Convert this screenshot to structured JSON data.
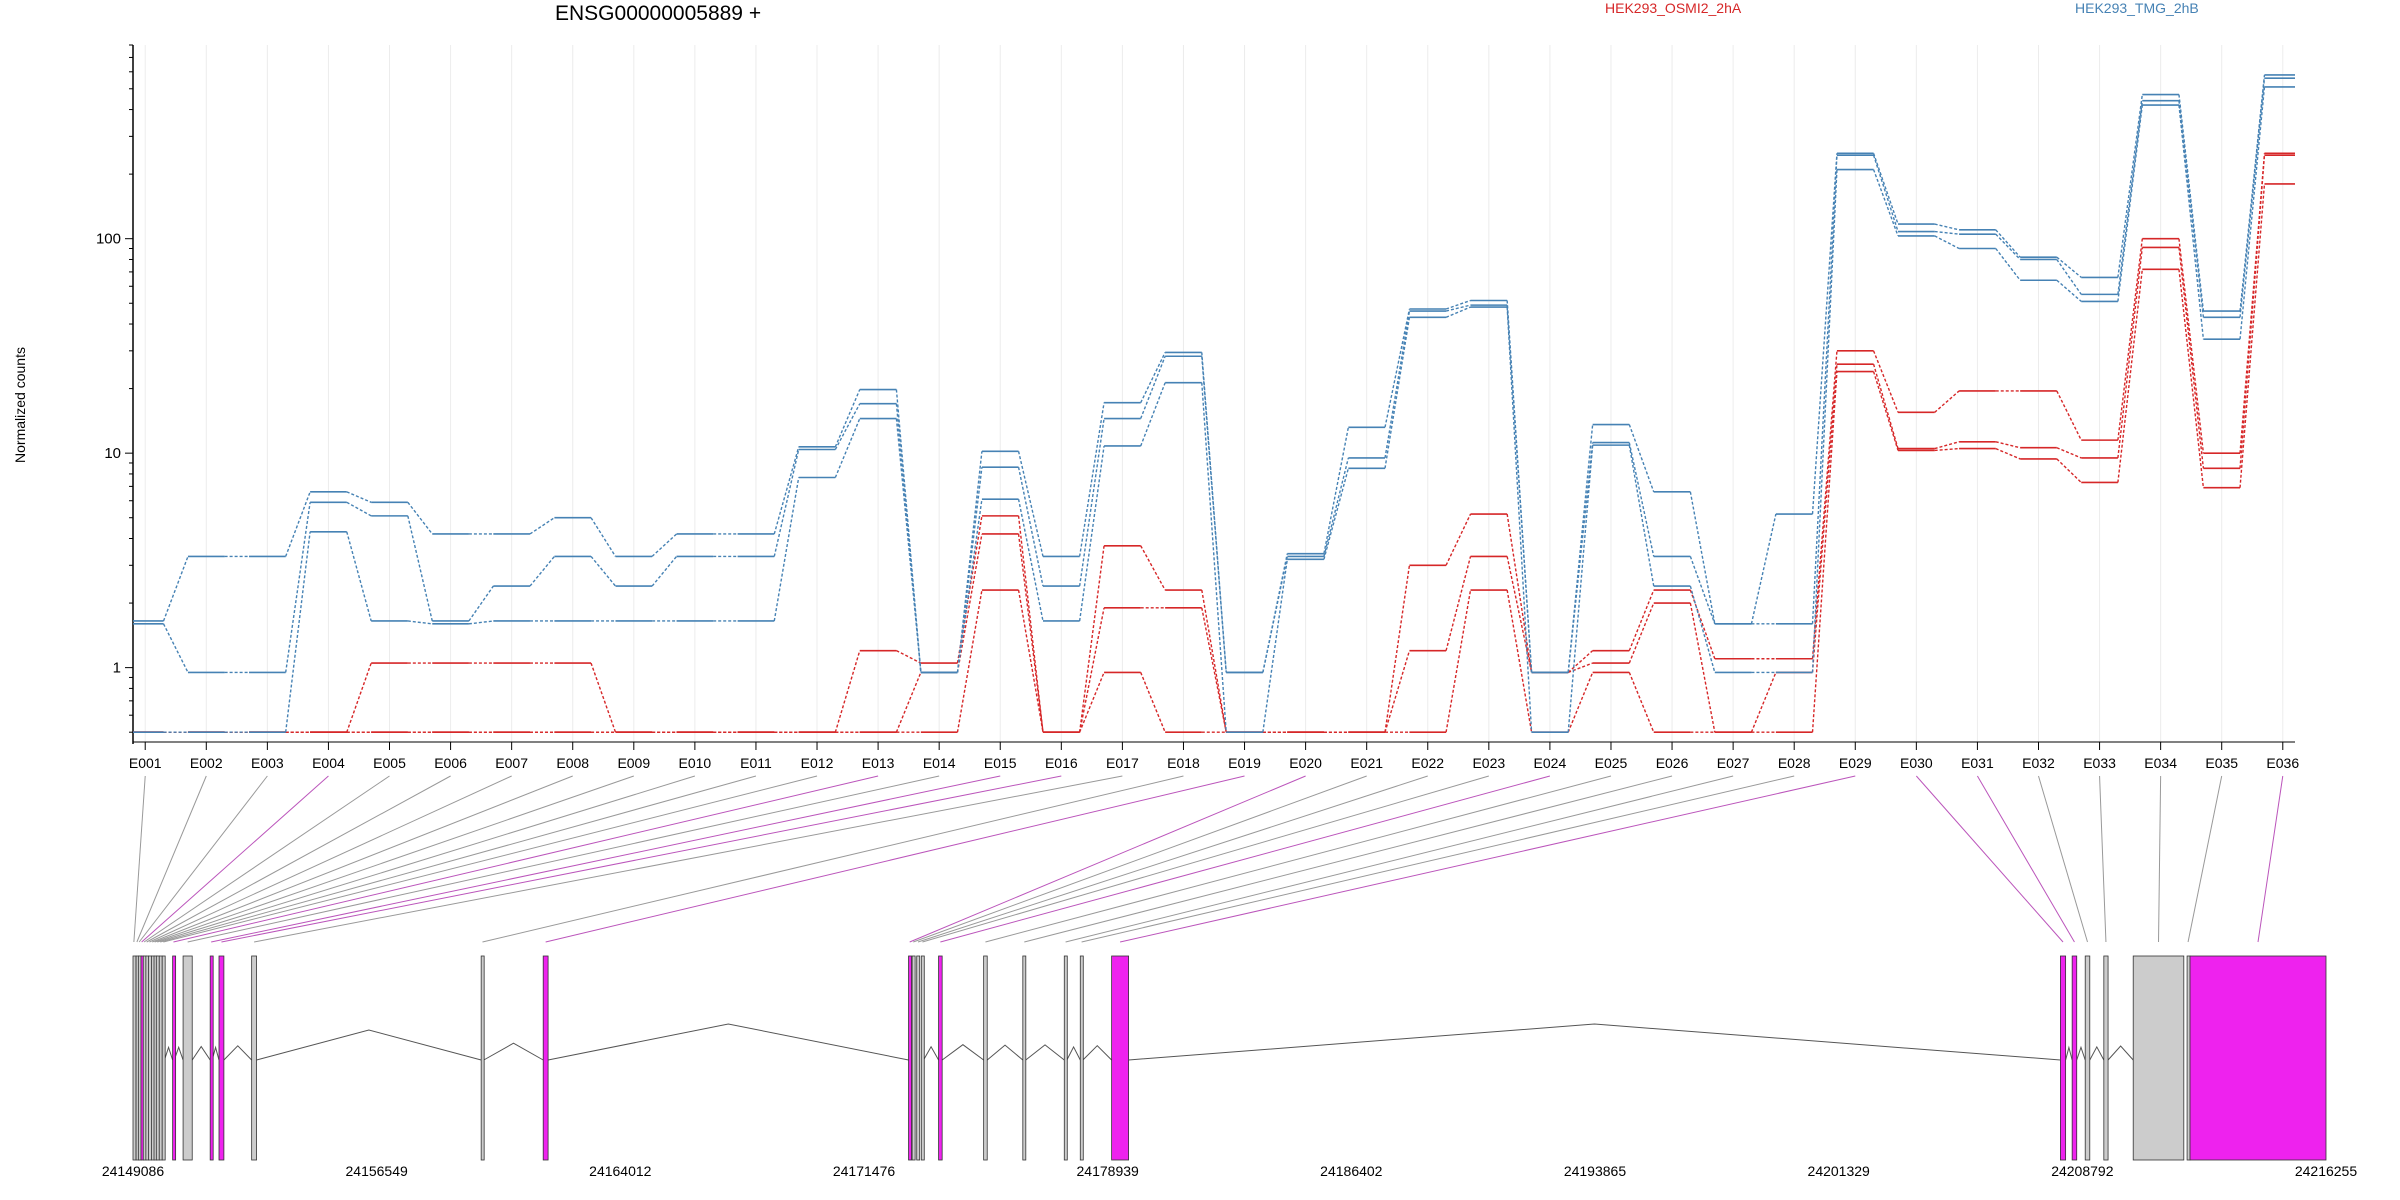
{
  "chart_data": {
    "type": "line",
    "title": "ENSG00000005889 +",
    "ylabel": "Normalized counts",
    "yscale": "log",
    "ylim": [
      0.45,
      800
    ],
    "yticks": [
      "1",
      "10",
      "100"
    ],
    "yticks_values": [
      1,
      10,
      100
    ],
    "grid": "vertical-only",
    "legend_placement": "top",
    "categories": [
      "E001",
      "E002",
      "E003",
      "E004",
      "E005",
      "E006",
      "E007",
      "E008",
      "E009",
      "E010",
      "E011",
      "E012",
      "E013",
      "E014",
      "E015",
      "E016",
      "E017",
      "E018",
      "E019",
      "E020",
      "E021",
      "E022",
      "E023",
      "E024",
      "E025",
      "E026",
      "E027",
      "E028",
      "E029",
      "E030",
      "E031",
      "E032",
      "E033",
      "E034",
      "E035",
      "E036"
    ],
    "series": [
      {
        "name": "HEK293_OSMI2_2hA",
        "group": "HEK293_OSMI2_2hA",
        "color": "#d62728",
        "values": [
          0.5,
          0.5,
          0.5,
          0.5,
          1.05,
          1.05,
          1.05,
          1.05,
          0.5,
          0.5,
          0.5,
          0.5,
          1.2,
          1.05,
          5.1,
          0.5,
          3.7,
          2.3,
          0.5,
          0.5,
          0.5,
          3.0,
          5.2,
          0.95,
          1.2,
          2.3,
          1.1,
          1.1,
          30,
          15.5,
          19.5,
          19.5,
          11.5,
          100,
          10,
          250
        ]
      },
      {
        "name": "",
        "group": "HEK293_OSMI2_2hA",
        "color": "#d62728",
        "values": [
          0.5,
          0.5,
          0.5,
          0.5,
          0.5,
          0.5,
          0.5,
          0.5,
          0.5,
          0.5,
          0.5,
          0.5,
          0.5,
          0.95,
          4.2,
          0.5,
          1.9,
          1.9,
          0.5,
          0.5,
          0.5,
          1.2,
          3.3,
          0.95,
          1.05,
          2.0,
          0.5,
          0.95,
          26,
          10.5,
          11.3,
          10.6,
          9.5,
          91,
          8.5,
          245
        ]
      },
      {
        "name": "",
        "group": "HEK293_OSMI2_2hA",
        "color": "#d62728",
        "values": [
          0.5,
          0.5,
          0.5,
          0.5,
          0.5,
          0.5,
          0.5,
          0.5,
          0.5,
          0.5,
          0.5,
          0.5,
          0.5,
          0.5,
          2.3,
          0.5,
          0.95,
          0.5,
          0.5,
          0.5,
          0.5,
          0.5,
          2.3,
          0.5,
          0.95,
          0.5,
          0.5,
          0.5,
          24,
          10.3,
          10.5,
          9.4,
          7.3,
          72,
          6.9,
          180
        ]
      },
      {
        "name": "HEK293_TMG_2hB",
        "group": "HEK293_TMG_2hB",
        "color": "#4682b4",
        "values": [
          1.65,
          3.3,
          3.3,
          6.6,
          5.9,
          4.2,
          4.2,
          5.0,
          3.3,
          4.2,
          4.2,
          10.7,
          19.8,
          0.95,
          10.2,
          3.3,
          17.2,
          29.5,
          0.95,
          3.4,
          13.2,
          47,
          51.5,
          0.95,
          13.6,
          6.6,
          1.6,
          5.2,
          250,
          117,
          110,
          82,
          66,
          470,
          46,
          580
        ]
      },
      {
        "name": "",
        "group": "HEK293_TMG_2hB",
        "color": "#4682b4",
        "values": [
          1.6,
          0.95,
          0.95,
          5.9,
          5.1,
          1.65,
          2.4,
          3.3,
          2.4,
          3.3,
          3.3,
          10.4,
          17,
          0.95,
          8.6,
          2.4,
          14.5,
          28.3,
          0.95,
          3.3,
          9.5,
          46,
          49,
          0.95,
          11.2,
          3.3,
          1.6,
          1.6,
          245,
          108,
          105,
          80,
          55,
          440,
          43,
          560
        ]
      },
      {
        "name": "",
        "group": "HEK293_TMG_2hB",
        "color": "#4682b4",
        "values": [
          0.5,
          0.5,
          0.5,
          4.3,
          1.65,
          1.6,
          1.65,
          1.65,
          1.65,
          1.65,
          1.65,
          7.7,
          14.5,
          0.95,
          6.1,
          1.65,
          10.8,
          21.3,
          0.5,
          3.2,
          8.5,
          43,
          48,
          0.5,
          10.9,
          2.4,
          0.95,
          0.95,
          210,
          103,
          90,
          64,
          51,
          420,
          34,
          510
        ]
      }
    ],
    "gene_axis_ticks": [
      "24149086",
      "24156549",
      "24164012",
      "24171476",
      "24178939",
      "24186402",
      "24193865",
      "24201329",
      "24208792",
      "24216255"
    ],
    "gene_axis_values": [
      24149086,
      24156549,
      24164012,
      24171476,
      24178939,
      24186402,
      24193865,
      24201329,
      24208792,
      24216255
    ],
    "exon_genomic_spans": [
      [
        24149086,
        24149140
      ],
      [
        24149180,
        24149230
      ],
      [
        24149250,
        24149300
      ],
      [
        24149330,
        24149372
      ],
      [
        24149400,
        24149450
      ],
      [
        24149480,
        24149530
      ],
      [
        24149560,
        24149620
      ],
      [
        24149650,
        24149700
      ],
      [
        24149730,
        24149770
      ],
      [
        24149800,
        24149860
      ],
      [
        24149890,
        24149950
      ],
      [
        24149980,
        24150050
      ],
      [
        24150300,
        24150350
      ],
      [
        24150620,
        24150900
      ],
      [
        24151450,
        24151510
      ],
      [
        24151720,
        24151870
      ],
      [
        24152720,
        24152870
      ],
      [
        24159750,
        24159830
      ],
      [
        24161650,
        24161800
      ],
      [
        24172840,
        24172910
      ],
      [
        24172950,
        24173020
      ],
      [
        24173090,
        24173170
      ],
      [
        24173230,
        24173300
      ],
      [
        24173760,
        24173870
      ],
      [
        24175140,
        24175250
      ],
      [
        24176340,
        24176430
      ],
      [
        24177610,
        24177690
      ],
      [
        24178100,
        24178180
      ],
      [
        24179060,
        24179580
      ],
      [
        24208120,
        24208280
      ],
      [
        24208480,
        24208620
      ],
      [
        24208880,
        24209020
      ],
      [
        24209450,
        24209580
      ],
      [
        24210350,
        24211900
      ],
      [
        24212000,
        24212060
      ],
      [
        24212090,
        24216255
      ]
    ],
    "exon_tested": [
      false,
      false,
      false,
      true,
      false,
      false,
      false,
      false,
      false,
      false,
      false,
      false,
      true,
      false,
      true,
      true,
      false,
      false,
      true,
      true,
      false,
      false,
      false,
      true,
      false,
      false,
      false,
      false,
      true,
      true,
      true,
      false,
      false,
      false,
      false,
      true
    ],
    "exon_colors": {
      "tested": "#ee22ee",
      "untested": "#cccccc",
      "connector_tested": "#bb55bb",
      "connector_untested": "#999999"
    }
  }
}
